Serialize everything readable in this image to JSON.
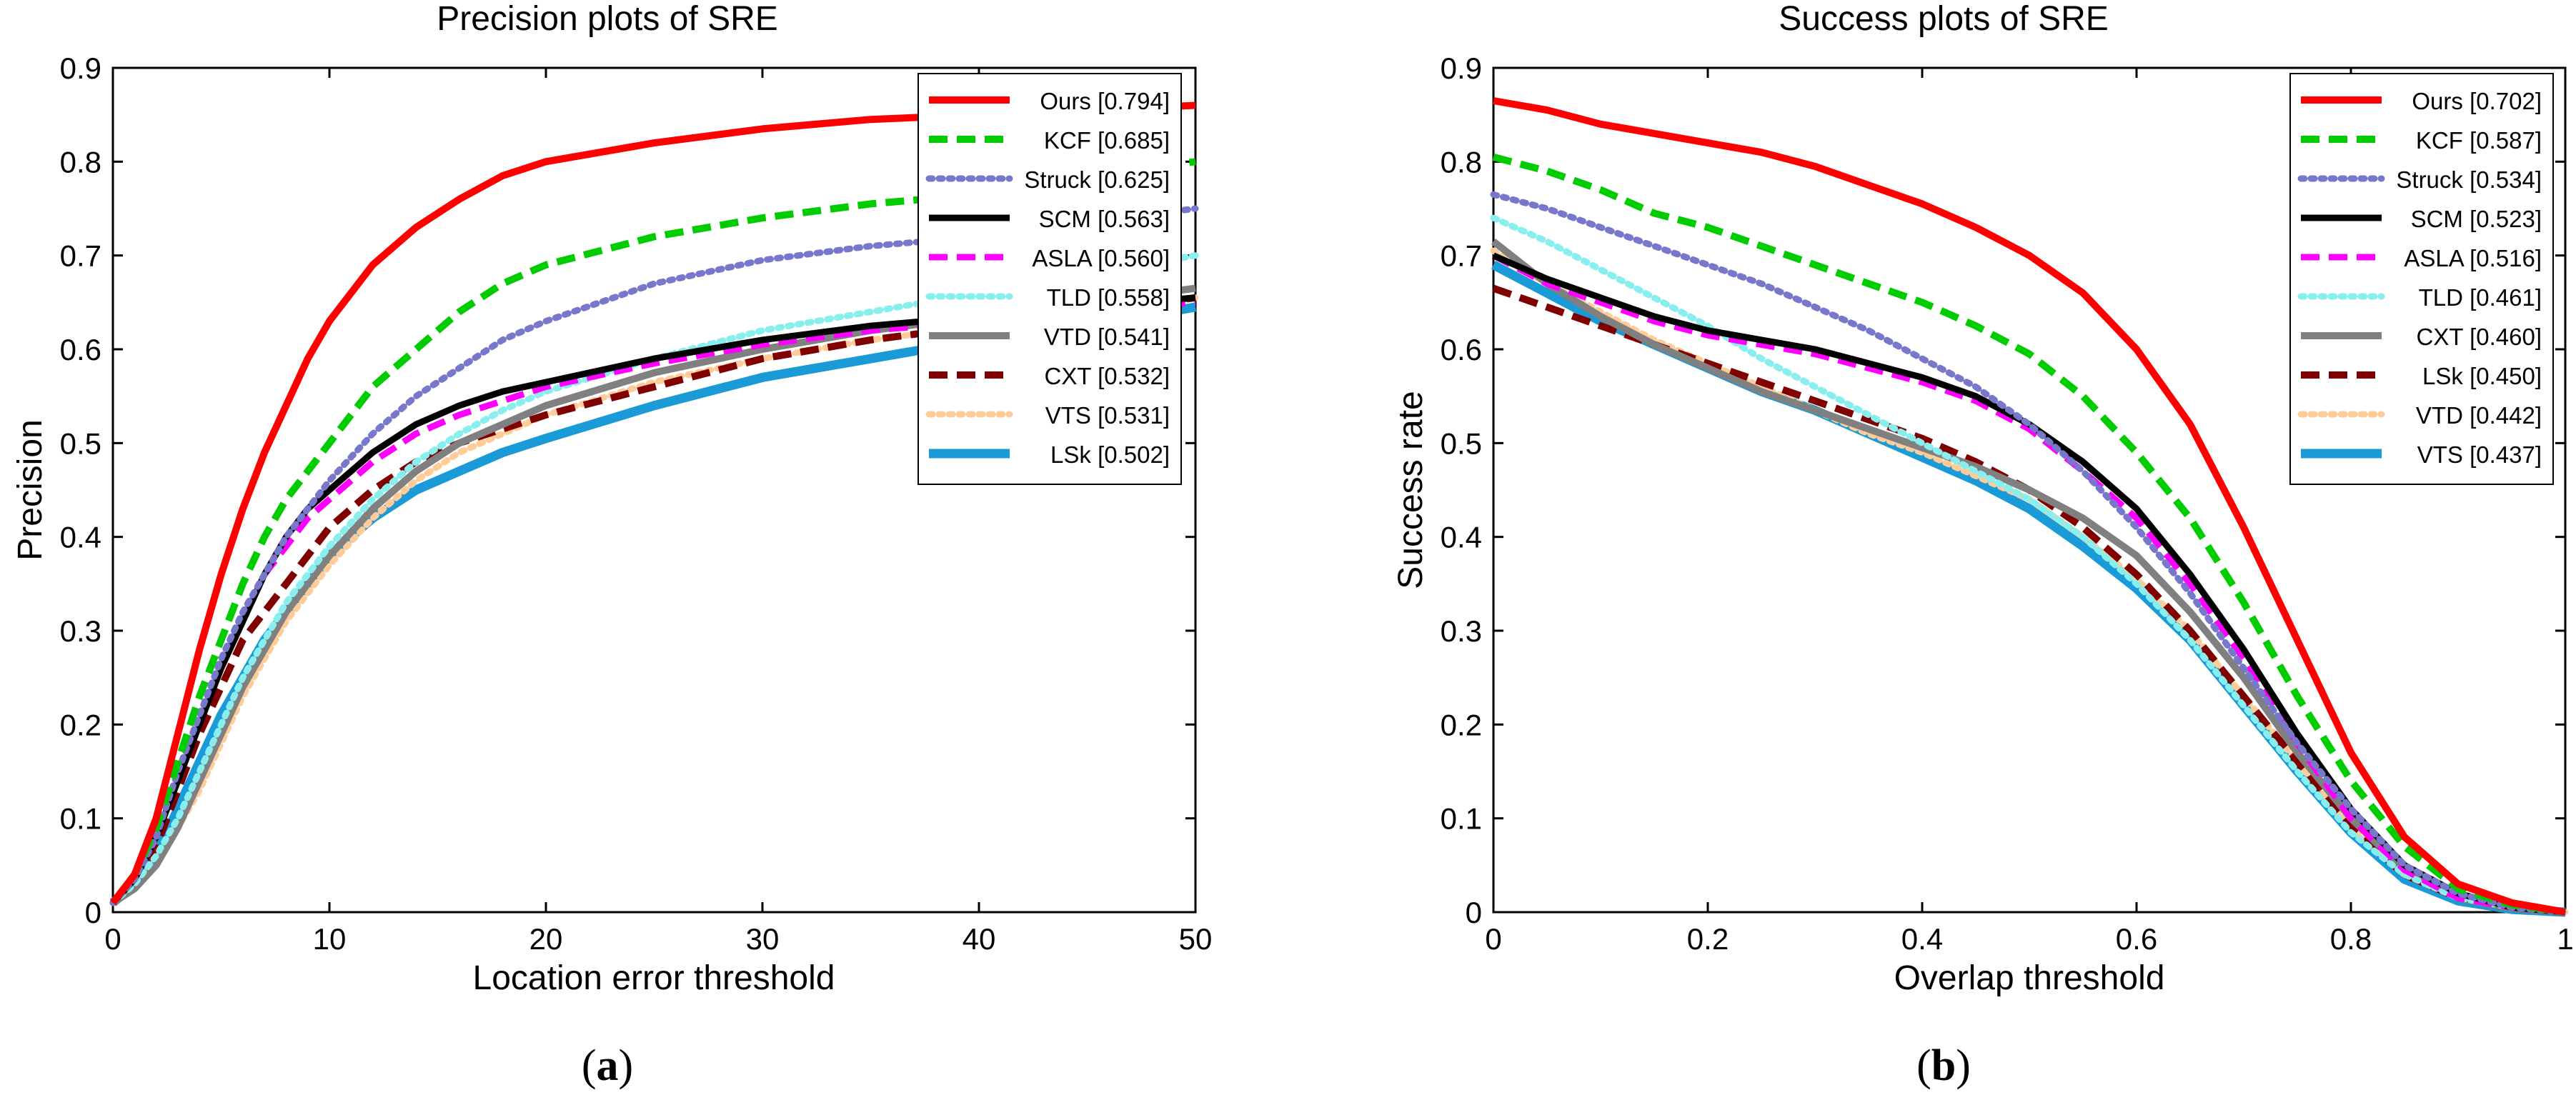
{
  "chart_data": [
    {
      "type": "line",
      "panel_label": "a",
      "title": "Precision plots of SRE",
      "xlabel": "Location error threshold",
      "ylabel": "Precision",
      "xlim": [
        0,
        50
      ],
      "ylim": [
        0,
        0.9
      ],
      "xticks": [
        0,
        10,
        20,
        30,
        40,
        50
      ],
      "yticks": [
        0,
        0.1,
        0.2,
        0.3,
        0.4,
        0.5,
        0.6,
        0.7,
        0.8,
        0.9
      ],
      "legend_position": "top-right",
      "x": [
        0,
        1,
        2,
        3,
        4,
        5,
        6,
        7,
        8,
        9,
        10,
        12,
        14,
        16,
        18,
        20,
        25,
        30,
        35,
        40,
        45,
        50
      ],
      "series": [
        {
          "name": "Ours",
          "legend": "Ours [0.794]",
          "color": "#ff0000",
          "dash": "solid",
          "width": 10,
          "values": [
            0.01,
            0.04,
            0.1,
            0.19,
            0.28,
            0.36,
            0.43,
            0.49,
            0.54,
            0.59,
            0.63,
            0.69,
            0.73,
            0.76,
            0.785,
            0.8,
            0.82,
            0.835,
            0.845,
            0.85,
            0.855,
            0.86
          ]
        },
        {
          "name": "KCF",
          "legend": "KCF [0.685]",
          "color": "#00cc00",
          "dash": "dash",
          "width": 10,
          "values": [
            0.01,
            0.04,
            0.09,
            0.16,
            0.23,
            0.29,
            0.35,
            0.4,
            0.44,
            0.47,
            0.5,
            0.56,
            0.6,
            0.64,
            0.67,
            0.69,
            0.72,
            0.74,
            0.755,
            0.765,
            0.785,
            0.8
          ]
        },
        {
          "name": "Struck",
          "legend": "Struck [0.625]",
          "color": "#7777cc",
          "dash": "dot",
          "width": 9,
          "values": [
            0.01,
            0.035,
            0.08,
            0.15,
            0.21,
            0.27,
            0.32,
            0.36,
            0.4,
            0.43,
            0.46,
            0.51,
            0.55,
            0.58,
            0.61,
            0.63,
            0.67,
            0.695,
            0.71,
            0.72,
            0.735,
            0.75
          ]
        },
        {
          "name": "SCM",
          "legend": "SCM [0.563]",
          "color": "#000000",
          "dash": "solid",
          "width": 9,
          "values": [
            0.01,
            0.035,
            0.08,
            0.14,
            0.2,
            0.26,
            0.31,
            0.36,
            0.4,
            0.43,
            0.45,
            0.49,
            0.52,
            0.54,
            0.555,
            0.565,
            0.59,
            0.61,
            0.625,
            0.635,
            0.645,
            0.655
          ]
        },
        {
          "name": "ASLA",
          "legend": "ASLA [0.560]",
          "color": "#ff00ff",
          "dash": "dash",
          "width": 9,
          "values": [
            0.01,
            0.035,
            0.08,
            0.14,
            0.2,
            0.26,
            0.31,
            0.36,
            0.39,
            0.42,
            0.44,
            0.48,
            0.51,
            0.53,
            0.545,
            0.56,
            0.585,
            0.605,
            0.62,
            0.63,
            0.64,
            0.65
          ]
        },
        {
          "name": "TLD",
          "legend": "TLD [0.558]",
          "color": "#88eeee",
          "dash": "dot",
          "width": 9,
          "values": [
            0.01,
            0.03,
            0.06,
            0.1,
            0.15,
            0.2,
            0.25,
            0.29,
            0.33,
            0.36,
            0.39,
            0.44,
            0.48,
            0.51,
            0.535,
            0.555,
            0.59,
            0.62,
            0.64,
            0.66,
            0.68,
            0.7
          ]
        },
        {
          "name": "VTD",
          "legend": "VTD [0.541]",
          "color": "#808080",
          "dash": "solid",
          "width": 10,
          "values": [
            0.01,
            0.025,
            0.05,
            0.09,
            0.14,
            0.19,
            0.24,
            0.28,
            0.32,
            0.35,
            0.38,
            0.43,
            0.47,
            0.5,
            0.52,
            0.54,
            0.575,
            0.6,
            0.62,
            0.635,
            0.65,
            0.665
          ]
        },
        {
          "name": "CXT",
          "legend": "CXT [0.532]",
          "color": "#800000",
          "dash": "dash",
          "width": 10,
          "values": [
            0.01,
            0.03,
            0.07,
            0.13,
            0.19,
            0.24,
            0.29,
            0.32,
            0.35,
            0.38,
            0.41,
            0.45,
            0.48,
            0.5,
            0.515,
            0.53,
            0.56,
            0.59,
            0.61,
            0.625,
            0.64,
            0.655
          ]
        },
        {
          "name": "VTS",
          "legend": "VTS [0.531]",
          "color": "#ffcc99",
          "dash": "dot",
          "width": 9,
          "values": [
            0.01,
            0.025,
            0.05,
            0.09,
            0.13,
            0.18,
            0.23,
            0.27,
            0.31,
            0.34,
            0.37,
            0.42,
            0.46,
            0.49,
            0.51,
            0.53,
            0.565,
            0.59,
            0.61,
            0.625,
            0.64,
            0.655
          ]
        },
        {
          "name": "LSk",
          "legend": "LSk [0.502]",
          "color": "#1a9ad6",
          "dash": "solid",
          "width": 13,
          "values": [
            0.01,
            0.03,
            0.06,
            0.11,
            0.16,
            0.21,
            0.25,
            0.29,
            0.32,
            0.35,
            0.38,
            0.42,
            0.45,
            0.47,
            0.49,
            0.505,
            0.54,
            0.57,
            0.59,
            0.61,
            0.625,
            0.645
          ]
        }
      ]
    },
    {
      "type": "line",
      "panel_label": "b",
      "title": "Success plots of SRE",
      "xlabel": "Overlap threshold",
      "ylabel": "Success rate",
      "xlim": [
        0,
        1
      ],
      "ylim": [
        0,
        0.9
      ],
      "xticks": [
        0,
        0.2,
        0.4,
        0.6,
        0.8,
        1
      ],
      "yticks": [
        0,
        0.1,
        0.2,
        0.3,
        0.4,
        0.5,
        0.6,
        0.7,
        0.8,
        0.9
      ],
      "legend_position": "top-right",
      "x": [
        0,
        0.05,
        0.1,
        0.15,
        0.2,
        0.25,
        0.3,
        0.35,
        0.4,
        0.45,
        0.5,
        0.55,
        0.6,
        0.65,
        0.7,
        0.75,
        0.8,
        0.85,
        0.9,
        0.95,
        1.0
      ],
      "series": [
        {
          "name": "Ours",
          "legend": "Ours [0.702]",
          "color": "#ff0000",
          "dash": "solid",
          "width": 10,
          "values": [
            0.865,
            0.855,
            0.84,
            0.83,
            0.82,
            0.81,
            0.795,
            0.775,
            0.755,
            0.73,
            0.7,
            0.66,
            0.6,
            0.52,
            0.41,
            0.29,
            0.17,
            0.08,
            0.03,
            0.01,
            0.0
          ]
        },
        {
          "name": "KCF",
          "legend": "KCF [0.587]",
          "color": "#00cc00",
          "dash": "dash",
          "width": 10,
          "values": [
            0.805,
            0.79,
            0.77,
            0.745,
            0.73,
            0.71,
            0.69,
            0.67,
            0.65,
            0.625,
            0.595,
            0.55,
            0.49,
            0.42,
            0.33,
            0.23,
            0.14,
            0.07,
            0.025,
            0.008,
            0.0
          ]
        },
        {
          "name": "Struck",
          "legend": "Struck [0.534]",
          "color": "#7777cc",
          "dash": "dot",
          "width": 9,
          "values": [
            0.765,
            0.75,
            0.73,
            0.71,
            0.69,
            0.67,
            0.645,
            0.62,
            0.59,
            0.56,
            0.52,
            0.47,
            0.41,
            0.34,
            0.26,
            0.18,
            0.11,
            0.05,
            0.02,
            0.005,
            0.0
          ]
        },
        {
          "name": "SCM",
          "legend": "SCM [0.523]",
          "color": "#000000",
          "dash": "solid",
          "width": 9,
          "values": [
            0.7,
            0.675,
            0.655,
            0.635,
            0.62,
            0.61,
            0.6,
            0.585,
            0.57,
            0.55,
            0.52,
            0.48,
            0.43,
            0.36,
            0.28,
            0.19,
            0.11,
            0.05,
            0.02,
            0.005,
            0.0
          ]
        },
        {
          "name": "ASLA",
          "legend": "ASLA [0.516]",
          "color": "#ff00ff",
          "dash": "dash",
          "width": 9,
          "values": [
            0.7,
            0.67,
            0.65,
            0.63,
            0.615,
            0.605,
            0.595,
            0.58,
            0.565,
            0.545,
            0.515,
            0.47,
            0.42,
            0.35,
            0.27,
            0.18,
            0.1,
            0.045,
            0.015,
            0.005,
            0.0
          ]
        },
        {
          "name": "TLD",
          "legend": "TLD [0.461]",
          "color": "#88eeee",
          "dash": "dot",
          "width": 9,
          "values": [
            0.74,
            0.715,
            0.685,
            0.655,
            0.625,
            0.59,
            0.56,
            0.53,
            0.5,
            0.47,
            0.44,
            0.4,
            0.35,
            0.29,
            0.22,
            0.15,
            0.085,
            0.04,
            0.015,
            0.005,
            0.0
          ]
        },
        {
          "name": "CXT",
          "legend": "CXT [0.460]",
          "color": "#808080",
          "dash": "solid",
          "width": 10,
          "values": [
            0.715,
            0.67,
            0.635,
            0.605,
            0.58,
            0.555,
            0.535,
            0.515,
            0.495,
            0.475,
            0.45,
            0.42,
            0.38,
            0.32,
            0.25,
            0.17,
            0.1,
            0.045,
            0.015,
            0.004,
            0.0
          ]
        },
        {
          "name": "LSk",
          "legend": "LSk [0.450]",
          "color": "#800000",
          "dash": "dash",
          "width": 10,
          "values": [
            0.665,
            0.645,
            0.625,
            0.605,
            0.585,
            0.565,
            0.545,
            0.525,
            0.505,
            0.48,
            0.45,
            0.41,
            0.36,
            0.3,
            0.23,
            0.16,
            0.09,
            0.04,
            0.015,
            0.004,
            0.0
          ]
        },
        {
          "name": "VTD",
          "legend": "VTD [0.442]",
          "color": "#ffcc99",
          "dash": "dot",
          "width": 9,
          "values": [
            0.705,
            0.67,
            0.64,
            0.61,
            0.585,
            0.56,
            0.535,
            0.51,
            0.49,
            0.465,
            0.44,
            0.4,
            0.355,
            0.3,
            0.23,
            0.16,
            0.09,
            0.04,
            0.015,
            0.004,
            0.0
          ]
        },
        {
          "name": "VTS",
          "legend": "VTS [0.437]",
          "color": "#1a9ad6",
          "dash": "solid",
          "width": 13,
          "values": [
            0.69,
            0.66,
            0.63,
            0.605,
            0.58,
            0.555,
            0.535,
            0.51,
            0.485,
            0.46,
            0.43,
            0.39,
            0.345,
            0.29,
            0.22,
            0.15,
            0.085,
            0.035,
            0.012,
            0.003,
            0.0
          ]
        }
      ]
    }
  ]
}
